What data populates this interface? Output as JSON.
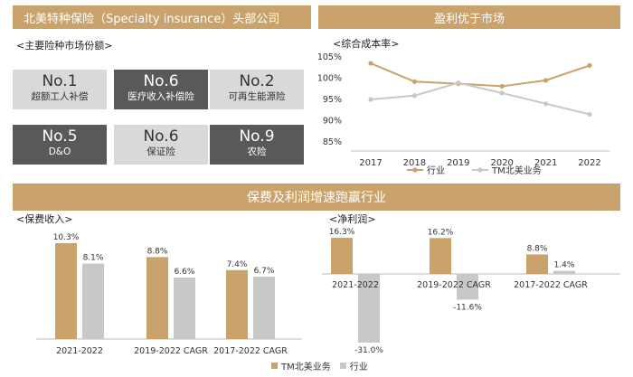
{
  "left_banner": "北美特种保险（Specialty insurance）头部公司",
  "right_banner": "盈利优于市场",
  "bottom_banner": "保费及利润增速跑赢行业",
  "market_share_title": "<主要险种市场份额>",
  "tiles": [
    {
      "rank": "No.1",
      "name": "超额工人补偿",
      "style": "light"
    },
    {
      "rank": "No.6",
      "name": "医疗收入补偿险",
      "style": "dark"
    },
    {
      "rank": "No.2",
      "name": "可再生能源险",
      "style": "light"
    },
    {
      "rank": "No.5",
      "name": "D&O",
      "style": "dark"
    },
    {
      "rank": "No.6",
      "name": "保证险",
      "style": "light"
    },
    {
      "rank": "No.9",
      "name": "农险",
      "style": "dark"
    }
  ],
  "colors": {
    "gold": "#c9a36b",
    "gray": "#c8c8c8",
    "dark": "#595959",
    "light": "#d9d9d9"
  },
  "chart_data": [
    {
      "type": "line",
      "title": "<综合成本率>",
      "x": [
        "2017",
        "2018",
        "2019",
        "2020",
        "2021",
        "2022"
      ],
      "yticks": [
        "85%",
        "90%",
        "95%",
        "100%",
        "105%"
      ],
      "ylim": [
        85,
        105
      ],
      "series": [
        {
          "name": "行业",
          "values": [
            103.5,
            99.2,
            98.7,
            98.1,
            99.5,
            103.0
          ]
        },
        {
          "name": "TM北美业务",
          "values": [
            95.0,
            95.9,
            98.9,
            96.5,
            94.0,
            91.5
          ]
        }
      ],
      "legend_position": "bottom"
    },
    {
      "type": "bar",
      "title": "<保费收入>",
      "categories": [
        "2021-2022",
        "2019-2022 CAGR",
        "2017-2022 CAGR"
      ],
      "series": [
        {
          "name": "TM北美业务",
          "values": [
            10.3,
            8.8,
            7.4
          ],
          "labels": [
            "10.3%",
            "8.8%",
            "7.4%"
          ]
        },
        {
          "name": "行业",
          "values": [
            8.1,
            6.6,
            6.7
          ],
          "labels": [
            "8.1%",
            "6.6%",
            "6.7%"
          ]
        }
      ]
    },
    {
      "type": "bar",
      "title": "<净利润>",
      "categories": [
        "2021-2022",
        "2019-2022 CAGR",
        "2017-2022 CAGR"
      ],
      "series": [
        {
          "name": "TM北美业务",
          "values": [
            16.3,
            16.2,
            8.8
          ],
          "labels": [
            "16.3%",
            "16.2%",
            "8.8%"
          ]
        },
        {
          "name": "行业",
          "values": [
            -31.0,
            -11.6,
            1.4
          ],
          "labels": [
            "-31.0%",
            "-11.6%",
            "1.4%"
          ]
        }
      ]
    }
  ],
  "bottom_legend": [
    "TM北美业务",
    "行业"
  ]
}
